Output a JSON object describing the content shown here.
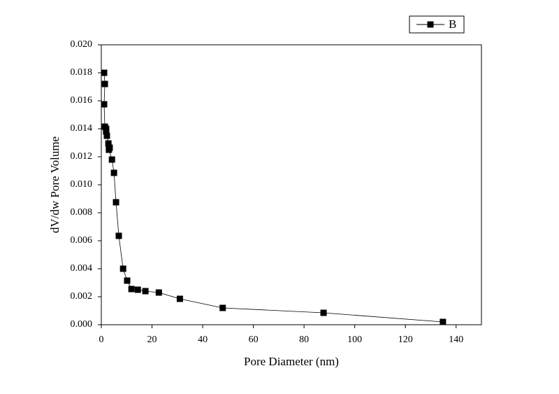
{
  "chart_data": {
    "type": "line",
    "x_label": "Pore Diameter (nm)",
    "y_label": "dV/dw Pore Volume",
    "x": [
      1.1,
      1.4,
      1.1,
      1.4,
      1.9,
      1.9,
      2.2,
      2.8,
      3.3,
      3.0,
      4.2,
      5.0,
      5.8,
      6.9,
      8.6,
      10.2,
      11.9,
      14.4,
      17.4,
      22.7,
      31.0,
      47.9,
      87.7,
      134.8
    ],
    "series": [
      {
        "name": "B",
        "color": "#000000",
        "values": [
          0.018,
          0.0172,
          0.01575,
          0.01415,
          0.014,
          0.0138,
          0.0135,
          0.01295,
          0.01265,
          0.0125,
          0.0118,
          0.01085,
          0.00875,
          0.00635,
          0.004,
          0.00315,
          0.00255,
          0.0025,
          0.0024,
          0.0023,
          0.00185,
          0.0012,
          0.00085,
          0.0002
        ]
      }
    ],
    "xlim": [
      0,
      150
    ],
    "xticks": [
      0,
      20,
      40,
      60,
      80,
      100,
      120,
      140
    ],
    "ylim": [
      0,
      0.02
    ],
    "yticks": [
      {
        "value": 0,
        "label": "0.000"
      },
      0.002,
      0.004,
      0.006,
      0.008,
      {
        "value": 0.01,
        "label": "0.010"
      },
      0.012,
      0.014,
      0.016,
      0.018,
      {
        "value": 0.02,
        "label": "0.020"
      }
    ],
    "legend": "upper right",
    "grid": false
  }
}
